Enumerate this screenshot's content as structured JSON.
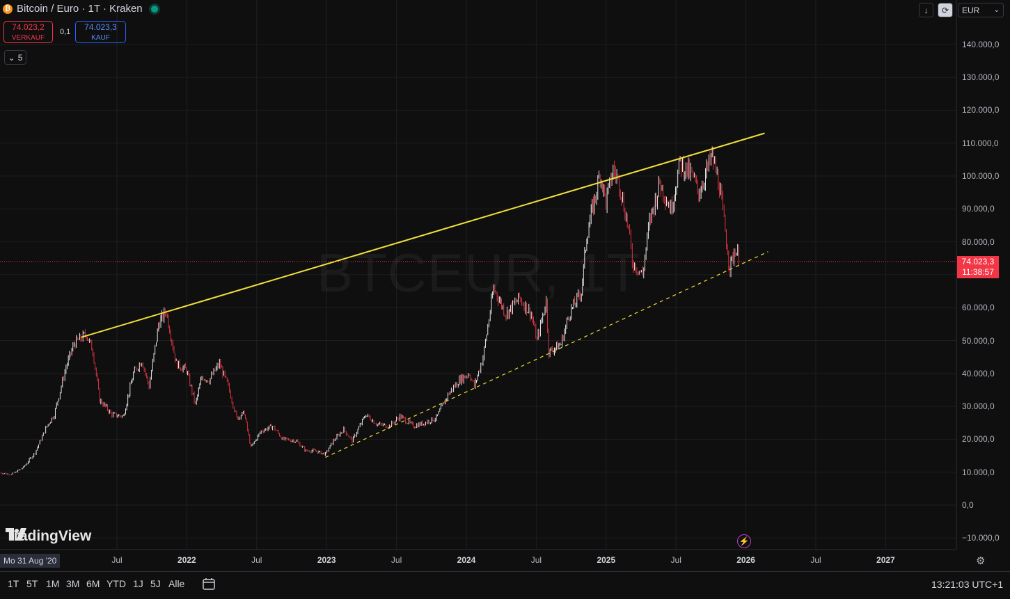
{
  "header": {
    "title": "Bitcoin / Euro · 1T · Kraken",
    "logo_glyph": "₿"
  },
  "quotes": {
    "sell_value": "74.023,2",
    "sell_label": "VERKAUF",
    "spread": "0,1",
    "buy_value": "74.023,3",
    "buy_label": "KAUF"
  },
  "indicators_toggle": "5",
  "currency_select": "EUR",
  "watermark": "BTCEUR, 1T",
  "brand": "TradingView",
  "current_price": {
    "value": "74.023,3",
    "countdown": "11:38:57"
  },
  "crosshair_date": "Mo 31 Aug '20",
  "price_axis_labels": [
    "140.000,0",
    "130.000,0",
    "120.000,0",
    "110.000,0",
    "100.000,0",
    "90.000,0",
    "80.000,0",
    "60.000,0",
    "50.000,0",
    "40.000,0",
    "30.000,0",
    "20.000,0",
    "10.000,0",
    "0,0",
    "−10.000,0"
  ],
  "time_axis_labels": [
    {
      "text": "Jul",
      "bold": false
    },
    {
      "text": "2022",
      "bold": true
    },
    {
      "text": "Jul",
      "bold": false
    },
    {
      "text": "2023",
      "bold": true
    },
    {
      "text": "Jul",
      "bold": false
    },
    {
      "text": "2024",
      "bold": true
    },
    {
      "text": "Jul",
      "bold": false
    },
    {
      "text": "2025",
      "bold": true
    },
    {
      "text": "Jul",
      "bold": false
    },
    {
      "text": "2026",
      "bold": true
    },
    {
      "text": "Jul",
      "bold": false
    },
    {
      "text": "2027",
      "bold": true
    }
  ],
  "range_buttons": [
    "1T",
    "5T",
    "1M",
    "3M",
    "6M",
    "YTD",
    "1J",
    "5J",
    "Alle"
  ],
  "clock": "13:21:03 UTC+1",
  "colors": {
    "candle_up": "#ffffff",
    "candle_down": "#f23645",
    "trendline": "#f2e03a",
    "price_line": "#f23645"
  },
  "chart_data": {
    "type": "line",
    "title": "",
    "xlabel": "",
    "ylabel": "",
    "ylim": [
      -10000,
      140000
    ],
    "xlim": [
      "2020-08-31",
      "2027-03-01"
    ],
    "grid": true,
    "series": [
      {
        "x": [
          "2020-08-31",
          "2020-10-01",
          "2020-11-01",
          "2020-12-01",
          "2021-01-01",
          "2021-01-20",
          "2021-02-20",
          "2021-03-13",
          "2021-04-14",
          "2021-05-01",
          "2021-05-19",
          "2021-06-20",
          "2021-07-20",
          "2021-08-15",
          "2021-09-06",
          "2021-09-25",
          "2021-10-20",
          "2021-11-09",
          "2021-12-05",
          "2022-01-01",
          "2022-01-24",
          "2022-02-10",
          "2022-03-01",
          "2022-03-28",
          "2022-04-20",
          "2022-05-12",
          "2022-06-01",
          "2022-06-18",
          "2022-07-15",
          "2022-08-14",
          "2022-09-10",
          "2022-10-15",
          "2022-11-09",
          "2022-12-01",
          "2022-12-30",
          "2023-01-20",
          "2023-02-16",
          "2023-03-10",
          "2023-04-14",
          "2023-05-15",
          "2023-06-15",
          "2023-07-13",
          "2023-08-17",
          "2023-09-15",
          "2023-10-16",
          "2023-11-15",
          "2023-12-15",
          "2024-01-10",
          "2024-01-23",
          "2024-02-15",
          "2024-03-14",
          "2024-04-15",
          "2024-05-20",
          "2024-06-20",
          "2024-07-05",
          "2024-07-29",
          "2024-08-05",
          "2024-09-06",
          "2024-09-27",
          "2024-10-29",
          "2024-11-12",
          "2024-12-05",
          "2024-12-17",
          "2025-01-01",
          "2025-01-20",
          "2025-02-05",
          "2025-03-01",
          "2025-03-11",
          "2025-04-07",
          "2025-04-25",
          "2025-05-22",
          "2025-06-20",
          "2025-07-14",
          "2025-08-14",
          "2025-09-01",
          "2025-10-06",
          "2025-10-25",
          "2025-11-21",
          "2025-12-05",
          "2025-12-18"
        ],
        "values": [
          9800,
          9300,
          11500,
          16000,
          24000,
          27500,
          42000,
          49000,
          52000,
          47000,
          32000,
          27500,
          27000,
          40000,
          44000,
          36000,
          55000,
          59000,
          43000,
          41000,
          30500,
          39000,
          38000,
          43000,
          36000,
          26500,
          28000,
          17500,
          22500,
          24000,
          20000,
          19500,
          16500,
          16500,
          15500,
          19500,
          23000,
          19500,
          27500,
          24500,
          24000,
          27000,
          24000,
          25000,
          26500,
          33500,
          38000,
          40000,
          36000,
          45000,
          66000,
          58000,
          63000,
          58000,
          50000,
          62000,
          46500,
          49000,
          58000,
          65000,
          82000,
          94000,
          101000,
          92000,
          102000,
          98000,
          84000,
          74000,
          70000,
          86000,
          98000,
          90000,
          104000,
          100000,
          95000,
          106000,
          97000,
          72000,
          78000,
          74023
        ]
      }
    ],
    "current_price": 74023.3,
    "annotations": [
      {
        "type": "trendline",
        "style": "solid",
        "points": [
          [
            "2021-04-01",
            51000
          ],
          [
            "2026-02-20",
            113000
          ]
        ]
      },
      {
        "type": "trendline",
        "style": "dashed",
        "points": [
          [
            "2022-12-30",
            14500
          ],
          [
            "2026-03-01",
            77000
          ]
        ]
      }
    ]
  }
}
